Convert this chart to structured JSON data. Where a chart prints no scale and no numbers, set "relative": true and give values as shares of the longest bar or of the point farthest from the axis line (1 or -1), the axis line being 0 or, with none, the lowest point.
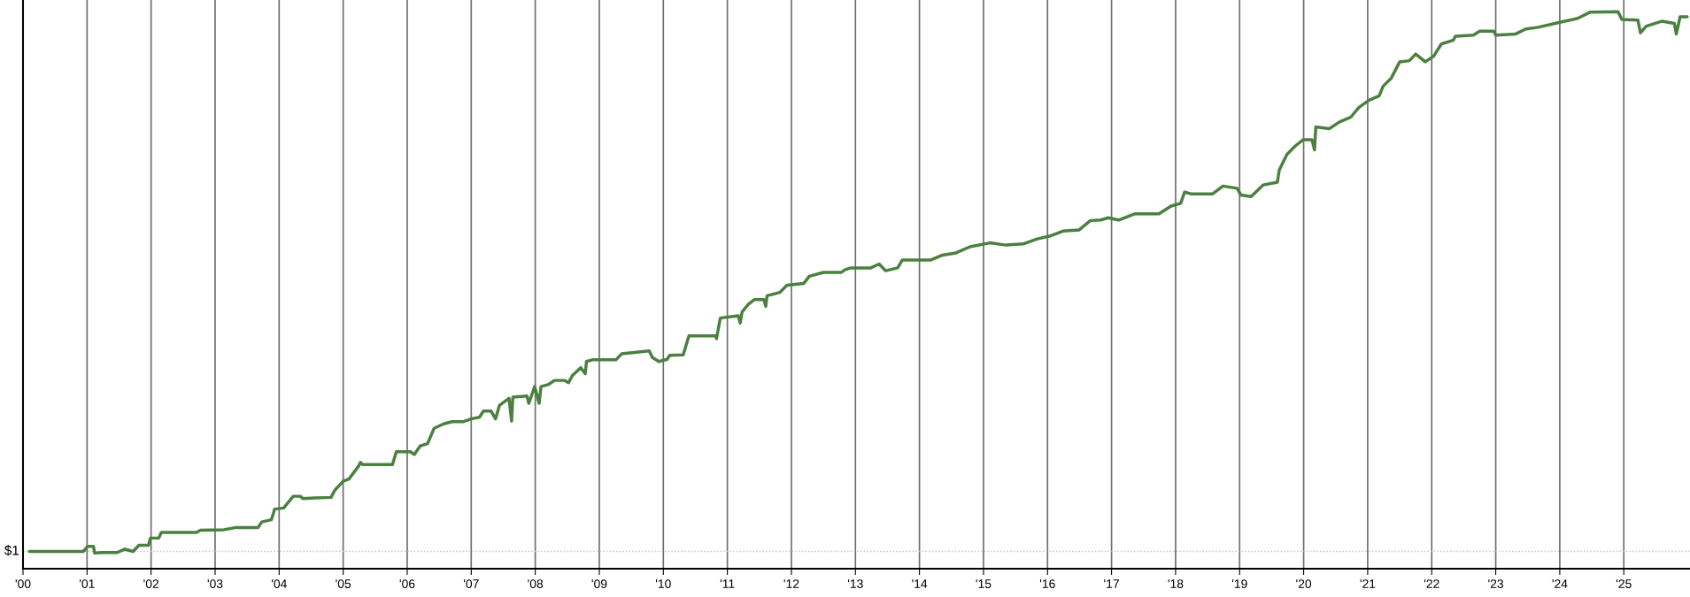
{
  "chart_data": {
    "type": "line",
    "relative": true,
    "x": [
      2000.1,
      2000.94,
      2001.01,
      2001.1,
      2001.12,
      2001.22,
      2001.47,
      2001.59,
      2001.72,
      2001.81,
      2001.96,
      2001.99,
      2002.12,
      2002.16,
      2002.71,
      2002.77,
      2003.14,
      2003.33,
      2003.67,
      2003.73,
      2003.88,
      2003.93,
      2004.07,
      2004.22,
      2004.33,
      2004.37,
      2004.56,
      2004.81,
      2004.87,
      2005.0,
      2005.09,
      2005.24,
      2005.27,
      2005.3,
      2005.77,
      2005.83,
      2006.05,
      2006.11,
      2006.2,
      2006.32,
      2006.39,
      2006.42,
      2006.57,
      2006.7,
      2006.88,
      2007.0,
      2007.13,
      2007.19,
      2007.31,
      2007.38,
      2007.44,
      2007.59,
      2007.63,
      2007.65,
      2007.87,
      2007.9,
      2007.99,
      2008.06,
      2008.09,
      2008.21,
      2008.3,
      2008.46,
      2008.52,
      2008.58,
      2008.71,
      2008.78,
      2008.8,
      2008.89,
      2009.26,
      2009.35,
      2009.78,
      2009.83,
      2009.93,
      2010.06,
      2010.1,
      2010.31,
      2010.4,
      2010.82,
      2010.83,
      2010.89,
      2011.17,
      2011.2,
      2011.23,
      2011.33,
      2011.42,
      2011.57,
      2011.6,
      2011.62,
      2011.82,
      2011.93,
      2012.19,
      2012.28,
      2012.5,
      2012.78,
      2012.84,
      2012.93,
      2013.24,
      2013.37,
      2013.47,
      2013.66,
      2013.73,
      2014.17,
      2014.36,
      2014.57,
      2014.79,
      2015.1,
      2015.35,
      2015.62,
      2015.84,
      2016.03,
      2016.24,
      2016.49,
      2016.67,
      2016.83,
      2016.95,
      2017.11,
      2017.36,
      2017.74,
      2017.93,
      2018.08,
      2018.14,
      2018.24,
      2018.58,
      2018.74,
      2018.96,
      2019.02,
      2019.18,
      2019.37,
      2019.59,
      2019.62,
      2019.74,
      2019.87,
      2019.99,
      2020.13,
      2020.17,
      2020.19,
      2020.4,
      2020.56,
      2020.74,
      2020.86,
      2021.02,
      2021.18,
      2021.24,
      2021.37,
      2021.5,
      2021.65,
      2021.75,
      2021.9,
      2022.03,
      2022.15,
      2022.34,
      2022.37,
      2022.65,
      2022.75,
      2022.97,
      2023.0,
      2023.31,
      2023.47,
      2023.66,
      2024.0,
      2024.28,
      2024.47,
      2024.91,
      2024.97,
      2025.22,
      2025.26,
      2025.35,
      2025.6,
      2025.79,
      2025.82,
      2025.88,
      2025.99
    ],
    "series": [
      {
        "color": "#4b8040",
        "values": [
          0.031,
          0.031,
          0.04,
          0.04,
          0.028,
          0.029,
          0.029,
          0.035,
          0.031,
          0.042,
          0.042,
          0.055,
          0.055,
          0.065,
          0.065,
          0.069,
          0.07,
          0.074,
          0.074,
          0.084,
          0.088,
          0.107,
          0.109,
          0.13,
          0.13,
          0.126,
          0.127,
          0.128,
          0.141,
          0.157,
          0.161,
          0.184,
          0.191,
          0.187,
          0.187,
          0.21,
          0.21,
          0.205,
          0.22,
          0.225,
          0.244,
          0.252,
          0.26,
          0.264,
          0.264,
          0.269,
          0.272,
          0.283,
          0.283,
          0.269,
          0.293,
          0.306,
          0.265,
          0.308,
          0.31,
          0.297,
          0.327,
          0.297,
          0.327,
          0.331,
          0.338,
          0.338,
          0.334,
          0.347,
          0.361,
          0.35,
          0.372,
          0.375,
          0.375,
          0.386,
          0.391,
          0.379,
          0.372,
          0.376,
          0.383,
          0.384,
          0.418,
          0.418,
          0.413,
          0.45,
          0.454,
          0.441,
          0.461,
          0.475,
          0.483,
          0.483,
          0.471,
          0.49,
          0.496,
          0.509,
          0.512,
          0.525,
          0.532,
          0.532,
          0.537,
          0.54,
          0.54,
          0.547,
          0.535,
          0.54,
          0.554,
          0.554,
          0.563,
          0.567,
          0.578,
          0.585,
          0.581,
          0.583,
          0.592,
          0.597,
          0.606,
          0.608,
          0.625,
          0.626,
          0.63,
          0.626,
          0.637,
          0.637,
          0.651,
          0.656,
          0.676,
          0.673,
          0.673,
          0.687,
          0.683,
          0.671,
          0.668,
          0.689,
          0.694,
          0.716,
          0.744,
          0.759,
          0.77,
          0.77,
          0.752,
          0.793,
          0.79,
          0.802,
          0.811,
          0.828,
          0.841,
          0.849,
          0.866,
          0.881,
          0.91,
          0.912,
          0.924,
          0.91,
          0.92,
          0.942,
          0.949,
          0.956,
          0.958,
          0.965,
          0.965,
          0.958,
          0.96,
          0.969,
          0.972,
          0.981,
          0.988,
          0.999,
          1.0,
          0.986,
          0.985,
          0.962,
          0.974,
          0.983,
          0.979,
          0.96,
          0.991,
          0.991
        ]
      }
    ],
    "xlim": [
      2000,
      2026.02
    ],
    "xticks": [
      {
        "value": 2000,
        "label": "'00"
      },
      {
        "value": 2001,
        "label": "'01"
      },
      {
        "value": 2002,
        "label": "'02"
      },
      {
        "value": 2003,
        "label": "'03"
      },
      {
        "value": 2004,
        "label": "'04"
      },
      {
        "value": 2005,
        "label": "'05"
      },
      {
        "value": 2006,
        "label": "'06"
      },
      {
        "value": 2007,
        "label": "'07"
      },
      {
        "value": 2008,
        "label": "'08"
      },
      {
        "value": 2009,
        "label": "'09"
      },
      {
        "value": 2010,
        "label": "'10"
      },
      {
        "value": 2011,
        "label": "'11"
      },
      {
        "value": 2012,
        "label": "'12"
      },
      {
        "value": 2013,
        "label": "'13"
      },
      {
        "value": 2014,
        "label": "'14"
      },
      {
        "value": 2015,
        "label": "'15"
      },
      {
        "value": 2016,
        "label": "'16"
      },
      {
        "value": 2017,
        "label": "'17"
      },
      {
        "value": 2018,
        "label": "'18"
      },
      {
        "value": 2019,
        "label": "'19"
      },
      {
        "value": 2020,
        "label": "'20"
      },
      {
        "value": 2021,
        "label": "'21"
      },
      {
        "value": 2022,
        "label": "'22"
      },
      {
        "value": 2023,
        "label": "'23"
      },
      {
        "value": 2024,
        "label": "'24"
      },
      {
        "value": 2025,
        "label": "'25"
      }
    ],
    "ref_lines": [
      {
        "axis": "y",
        "value": 0.031,
        "color": "#c0c0c0",
        "line_style": "dotted"
      }
    ],
    "annotations": [
      "$1"
    ],
    "grid": "x",
    "legend": false,
    "marker": "none",
    "line_style": "solid"
  }
}
